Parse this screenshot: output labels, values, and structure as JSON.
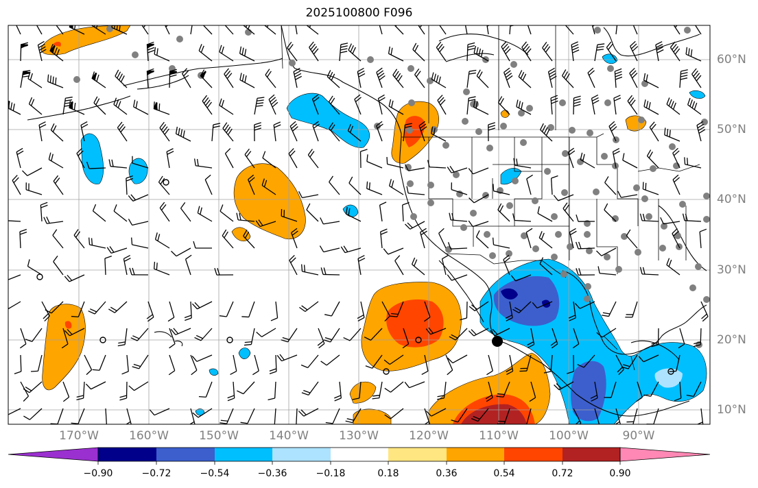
{
  "title": "2025100800 F096",
  "map": {
    "projection": "plate-carree",
    "lon_range": [
      -180,
      -80
    ],
    "lat_range": [
      8,
      65
    ],
    "lon_ticks": [
      "170°W",
      "160°W",
      "150°W",
      "140°W",
      "130°W",
      "120°W",
      "110°W",
      "100°W",
      "90°W"
    ],
    "lat_ticks": [
      "60°N",
      "50°N",
      "40°N",
      "30°N",
      "20°N",
      "10°N"
    ],
    "gridlines": true,
    "features": [
      "coastlines",
      "country-borders",
      "state-borders",
      "wind-barbs",
      "station-dots",
      "filled-contours"
    ]
  },
  "colorbar": {
    "orientation": "horizontal",
    "extend": "both",
    "tick_labels": [
      "−0.90",
      "−0.72",
      "−0.54",
      "−0.36",
      "−0.18",
      "0.18",
      "0.36",
      "0.54",
      "0.72",
      "0.90"
    ],
    "colors": [
      "#9b30d0",
      "#00008b",
      "#3c5fcd",
      "#00bfff",
      "#ade3ff",
      "#ffffff",
      "#ffe680",
      "#ffa500",
      "#ff4500",
      "#b22222",
      "#ff88b4"
    ]
  }
}
